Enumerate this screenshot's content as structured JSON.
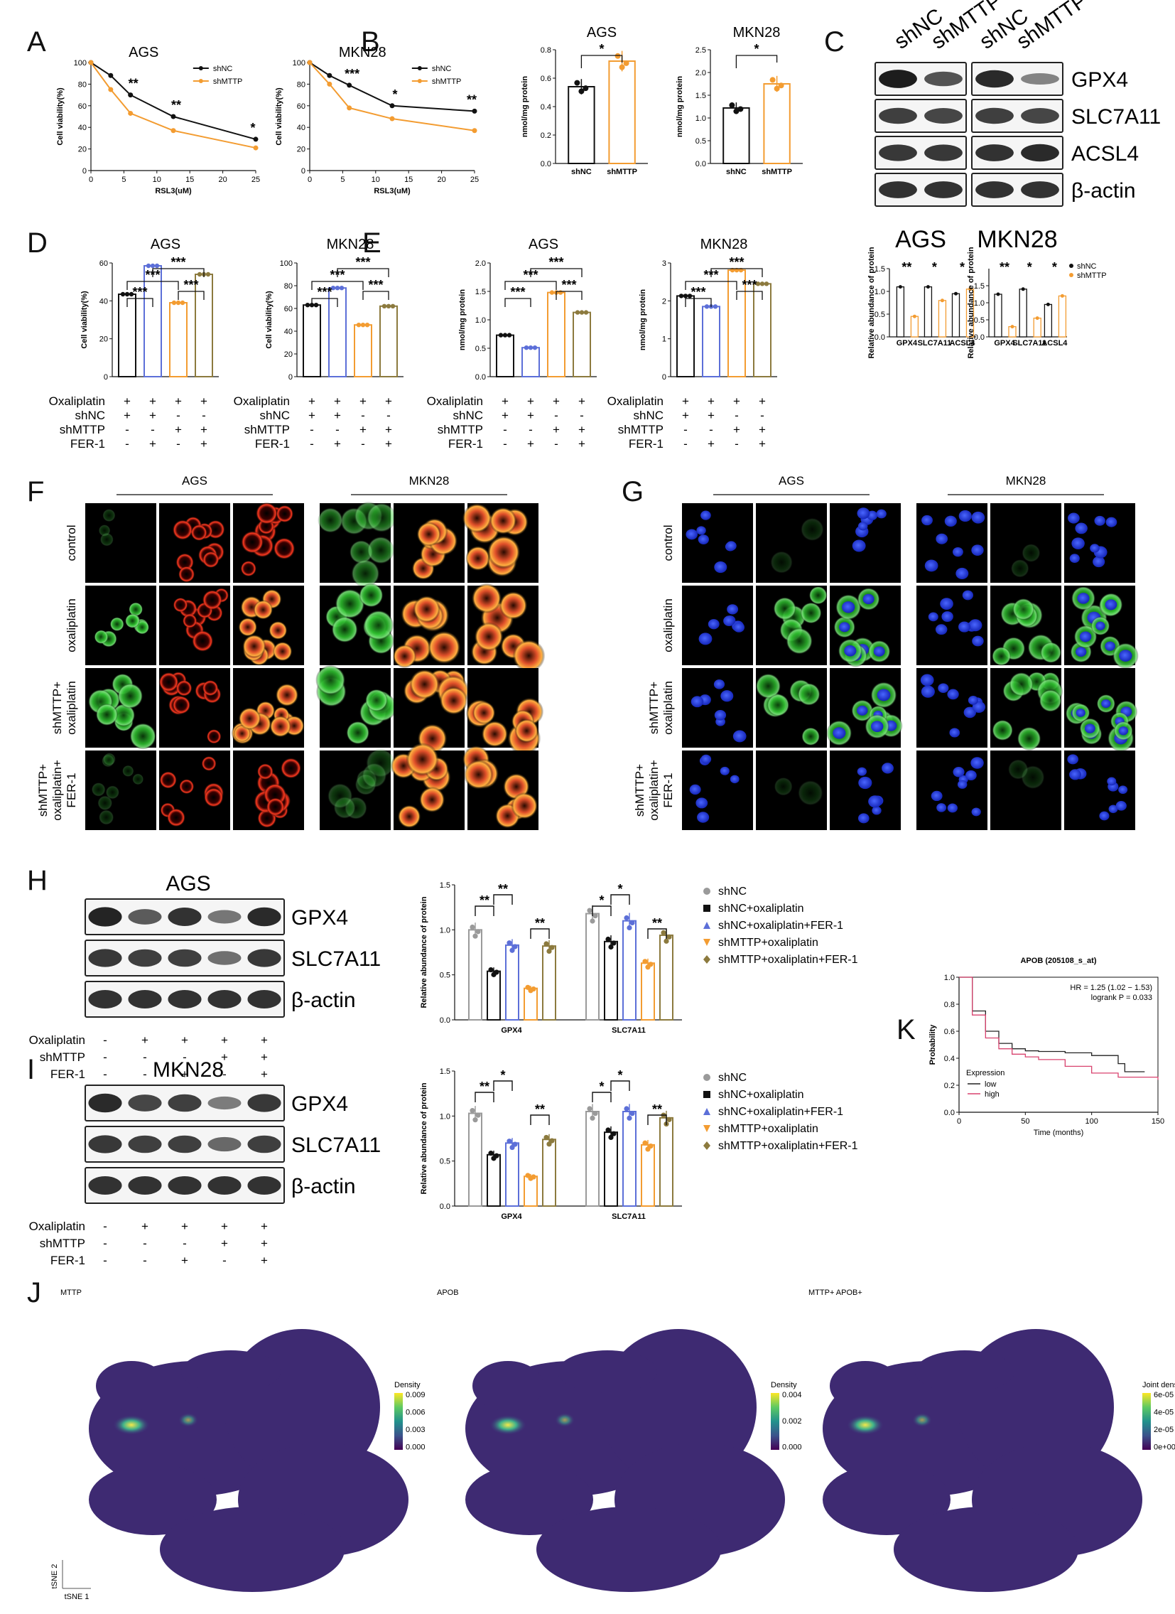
{
  "panels": [
    "A",
    "B",
    "C",
    "D",
    "E",
    "F",
    "G",
    "H",
    "I",
    "K",
    "J"
  ],
  "colors": {
    "shNC": "#111111",
    "shMTTP": "#F39C31",
    "blue": "#5C6FD8",
    "olive": "#8C7A3E",
    "grey": "#9A9A9A",
    "red": "#E03030",
    "green": "#33B833",
    "nucleus": "#2B46F0"
  },
  "panelA": {
    "charts": [
      {
        "title": "AGS",
        "xlabel": "RSL3(uM)",
        "ylabel": "Cell viability(%)",
        "legend": [
          "shNC",
          "shMTTP"
        ],
        "sig": [
          "**",
          "**",
          "*"
        ]
      },
      {
        "title": "MKN28",
        "xlabel": "RSL3(uM)",
        "ylabel": "Cell viability(%)",
        "legend": [
          "shNC",
          "shMTTP"
        ],
        "sig": [
          "***",
          "*",
          "**"
        ]
      }
    ]
  },
  "panelB": {
    "charts": [
      {
        "title": "AGS",
        "ylabel": "nmol/mg protein",
        "categories": [
          "shNC",
          "shMTTP"
        ],
        "sig": "*"
      },
      {
        "title": "MKN28",
        "ylabel": "nmol/mg protein",
        "categories": [
          "shNC",
          "shMTTP"
        ],
        "sig": "*"
      }
    ]
  },
  "panelC": {
    "lanes": [
      "shNC",
      "shMTTP",
      "shNC",
      "shMTTP"
    ],
    "proteins": [
      "GPX4",
      "SLC7A11",
      "ACSL4",
      "β-actin"
    ],
    "cells": [
      "AGS",
      "MKN28"
    ],
    "quant_ylabel": "Relative abundance of protein",
    "quant_categories": [
      "GPX4",
      "SLC7A11",
      "ACSL4"
    ],
    "quant_legend": [
      "shNC",
      "shMTTP"
    ],
    "quant_sig_left": [
      "**",
      "*",
      "*"
    ],
    "quant_sig_right": [
      "**",
      "*",
      "*"
    ]
  },
  "panelD": {
    "charts": [
      {
        "title": "AGS",
        "ylabel": "Cell viability(%)"
      },
      {
        "title": "MKN28",
        "ylabel": "Cell viability(%)"
      }
    ],
    "rows": [
      "Oxaliplatin",
      "shNC",
      "shMTTP",
      "FER-1"
    ],
    "signs": [
      [
        "+",
        "+",
        "+",
        "+"
      ],
      [
        "+",
        "+",
        "-",
        "-"
      ],
      [
        "-",
        "-",
        "+",
        "+"
      ],
      [
        "-",
        "+",
        "-",
        "+"
      ]
    ],
    "sig": [
      "***",
      "***",
      "***",
      "***"
    ]
  },
  "panelE": {
    "charts": [
      {
        "title": "AGS",
        "ylabel": "nmol/mg protein"
      },
      {
        "title": "MKN28",
        "ylabel": "nmol/mg protein"
      }
    ],
    "rows": [
      "Oxaliplatin",
      "shNC",
      "shMTTP",
      "FER-1"
    ],
    "signs": [
      [
        "+",
        "+",
        "+",
        "+"
      ],
      [
        "+",
        "+",
        "-",
        "-"
      ],
      [
        "-",
        "-",
        "+",
        "+"
      ],
      [
        "-",
        "+",
        "-",
        "+"
      ]
    ],
    "sig": [
      "***",
      "***",
      "***",
      "***"
    ]
  },
  "panelF": {
    "cells": [
      "AGS",
      "MKN28"
    ],
    "rows": [
      "control",
      "oxaliplatin",
      "shMTTP+\noxaliplatin",
      "shMTTP+\noxaliplatin+\nFER-1"
    ]
  },
  "panelG": {
    "cells": [
      "AGS",
      "MKN28"
    ],
    "rows": [
      "control",
      "oxaliplatin",
      "shMTTP+\noxaliplatin",
      "shMTTP+\noxaliplatin+\nFER-1"
    ]
  },
  "panelH": {
    "cell": "AGS",
    "proteins": [
      "GPX4",
      "SLC7A11",
      "β-actin"
    ],
    "rows": [
      "Oxaliplatin",
      "shMTTP",
      "FER-1"
    ],
    "signs": [
      [
        "-",
        "+",
        "+",
        "+",
        "+"
      ],
      [
        "-",
        "-",
        "-",
        "+",
        "+"
      ],
      [
        "-",
        "-",
        "+",
        "-",
        "+"
      ]
    ],
    "sig_gpx4": [
      "**",
      "**",
      "**"
    ],
    "sig_slc": [
      "*",
      "*",
      "**"
    ]
  },
  "panelI": {
    "cell": "MKN28",
    "proteins": [
      "GPX4",
      "SLC7A11",
      "β-actin"
    ],
    "rows": [
      "Oxaliplatin",
      "shMTTP",
      "FER-1"
    ],
    "signs": [
      [
        "-",
        "+",
        "+",
        "+",
        "+"
      ],
      [
        "-",
        "-",
        "-",
        "+",
        "+"
      ],
      [
        "-",
        "-",
        "+",
        "-",
        "+"
      ]
    ],
    "sig_gpx4": [
      "**",
      "*",
      "**"
    ],
    "sig_slc": [
      "*",
      "*",
      "**"
    ]
  },
  "legendHI": [
    "shNC",
    "shNC+oxaliplatin",
    "shNC+oxaliplatin+FER-1",
    "shMTTP+oxaliplatin",
    "shMTTP+oxaliplatin+FER-1"
  ],
  "panelK": {
    "title": "APOB (205108_s_at)",
    "hr": "HR = 1.25 (1.02 − 1.53)",
    "logrank": "logrank P = 0.033",
    "xlabel": "Time (months)",
    "ylabel": "Probability",
    "legend_title": "Expression",
    "legend": [
      "low",
      "high"
    ]
  },
  "panelJ": {
    "titles": [
      "MTTP",
      "APOB",
      "MTTP+ APOB+"
    ],
    "scale_labels": [
      "Density",
      "Density",
      "Joint density"
    ],
    "scale_ticks": [
      [
        "0.009",
        "0.006",
        "0.003",
        "0.000"
      ],
      [
        "0.004",
        "0.002",
        "0.000"
      ],
      [
        "6e-05",
        "4e-05",
        "2e-05",
        "0e+00"
      ]
    ],
    "axis": [
      "tSNE 2",
      "tSNE 1"
    ]
  },
  "chart_data": [
    {
      "type": "line",
      "panel": "A",
      "title": "AGS",
      "xlabel": "RSL3(uM)",
      "ylabel": "Cell viability(%)",
      "x": [
        0,
        3,
        6,
        12.5,
        25
      ],
      "ylim": [
        0,
        100
      ],
      "xticks": [
        0,
        5,
        10,
        15,
        20,
        25
      ],
      "yticks": [
        0,
        20,
        40,
        60,
        80,
        100
      ],
      "series": [
        {
          "name": "shNC",
          "values": [
            100,
            88,
            70,
            50,
            29
          ]
        },
        {
          "name": "shMTTP",
          "values": [
            100,
            75,
            53,
            37,
            21
          ]
        }
      ]
    },
    {
      "type": "line",
      "panel": "A",
      "title": "MKN28",
      "xlabel": "RSL3(uM)",
      "ylabel": "Cell viability(%)",
      "x": [
        0,
        3,
        6,
        12.5,
        25
      ],
      "ylim": [
        0,
        100
      ],
      "xticks": [
        0,
        5,
        10,
        15,
        20,
        25
      ],
      "yticks": [
        0,
        20,
        40,
        60,
        80,
        100
      ],
      "series": [
        {
          "name": "shNC",
          "values": [
            100,
            88,
            79,
            60,
            55
          ]
        },
        {
          "name": "shMTTP",
          "values": [
            100,
            80,
            58,
            48,
            37
          ]
        }
      ]
    },
    {
      "type": "bar",
      "panel": "B",
      "title": "AGS",
      "categories": [
        "shNC",
        "shMTTP"
      ],
      "values": [
        0.54,
        0.72
      ],
      "ylim": [
        0,
        0.8
      ],
      "yticks": [
        0.0,
        0.2,
        0.4,
        0.6,
        0.8
      ],
      "ylabel": "nmol/mg protein"
    },
    {
      "type": "bar",
      "panel": "B",
      "title": "MKN28",
      "categories": [
        "shNC",
        "shMTTP"
      ],
      "values": [
        1.22,
        1.75
      ],
      "ylim": [
        0,
        2.5
      ],
      "yticks": [
        0.0,
        0.5,
        1.0,
        1.5,
        2.0,
        2.5
      ],
      "ylabel": "nmol/mg protein"
    },
    {
      "type": "bar",
      "panel": "D",
      "title": "AGS",
      "values": [
        43.5,
        58.5,
        39,
        54
      ],
      "ylim": [
        0,
        60
      ],
      "yticks": [
        0,
        20,
        40,
        60
      ],
      "ylabel": "Cell viability(%)"
    },
    {
      "type": "bar",
      "panel": "D",
      "title": "MKN28",
      "values": [
        63,
        78,
        45.5,
        62
      ],
      "ylim": [
        0,
        100
      ],
      "yticks": [
        0,
        20,
        40,
        60,
        80,
        100
      ],
      "ylabel": "Cell viability(%)"
    },
    {
      "type": "bar",
      "panel": "E",
      "title": "AGS",
      "values": [
        0.73,
        0.51,
        1.48,
        1.13
      ],
      "ylim": [
        0,
        2.0
      ],
      "yticks": [
        0.0,
        0.5,
        1.0,
        1.5,
        2.0
      ],
      "ylabel": "nmol/mg protein"
    },
    {
      "type": "bar",
      "panel": "E",
      "title": "MKN28",
      "values": [
        2.13,
        1.85,
        2.81,
        2.45
      ],
      "ylim": [
        0,
        3
      ],
      "yticks": [
        0,
        1,
        2,
        3
      ],
      "ylabel": "nmol/mg protein"
    },
    {
      "type": "bar",
      "panel": "C",
      "title": "AGS",
      "categories": [
        "GPX4",
        "SLC7A11",
        "ACSL4"
      ],
      "series": [
        {
          "name": "shNC",
          "values": [
            1.1,
            1.1,
            0.95
          ]
        },
        {
          "name": "shMTTP",
          "values": [
            0.45,
            0.8,
            1.05
          ]
        }
      ],
      "ylim": [
        0,
        1.5
      ]
    },
    {
      "type": "bar",
      "panel": "C",
      "title": "MKN28",
      "categories": [
        "GPX4",
        "SLC7A11",
        "ACSL4"
      ],
      "series": [
        {
          "name": "shNC",
          "values": [
            1.25,
            1.4,
            0.95
          ]
        },
        {
          "name": "shMTTP",
          "values": [
            0.3,
            0.55,
            1.2
          ]
        }
      ],
      "ylim": [
        0,
        2.0
      ]
    },
    {
      "type": "bar",
      "panel": "H",
      "categories": [
        "GPX4",
        "SLC7A11"
      ],
      "ylabel": "Relative abundance of protein",
      "ylim": [
        0,
        1.5
      ],
      "yticks": [
        0.0,
        0.5,
        1.0,
        1.5
      ],
      "series": [
        {
          "name": "shNC",
          "values": [
            1.0,
            1.18
          ]
        },
        {
          "name": "shNC+oxaliplatin",
          "values": [
            0.54,
            0.87
          ]
        },
        {
          "name": "shNC+oxaliplatin+FER-1",
          "values": [
            0.83,
            1.1
          ]
        },
        {
          "name": "shMTTP+oxaliplatin",
          "values": [
            0.35,
            0.63
          ]
        },
        {
          "name": "shMTTP+oxaliplatin+FER-1",
          "values": [
            0.82,
            0.94
          ]
        }
      ]
    },
    {
      "type": "bar",
      "panel": "I",
      "categories": [
        "GPX4",
        "SLC7A11"
      ],
      "ylabel": "Relative abundance of protein",
      "ylim": [
        0,
        1.5
      ],
      "yticks": [
        0.0,
        0.5,
        1.0,
        1.5
      ],
      "series": [
        {
          "name": "shNC",
          "values": [
            1.03,
            1.05
          ]
        },
        {
          "name": "shNC+oxaliplatin",
          "values": [
            0.57,
            0.82
          ]
        },
        {
          "name": "shNC+oxaliplatin+FER-1",
          "values": [
            0.7,
            1.05
          ]
        },
        {
          "name": "shMTTP+oxaliplatin",
          "values": [
            0.33,
            0.68
          ]
        },
        {
          "name": "shMTTP+oxaliplatin+FER-1",
          "values": [
            0.74,
            0.98
          ]
        }
      ]
    },
    {
      "type": "line",
      "panel": "K",
      "title": "APOB (205108_s_at)",
      "xlabel": "Time (months)",
      "ylabel": "Probability",
      "xlim": [
        0,
        150
      ],
      "ylim": [
        0,
        1.0
      ],
      "xticks": [
        0,
        50,
        100,
        150
      ],
      "yticks": [
        0.0,
        0.2,
        0.4,
        0.6,
        0.8,
        1.0
      ],
      "series": [
        {
          "name": "low",
          "x": [
            0,
            10,
            20,
            30,
            40,
            50,
            60,
            80,
            100,
            120,
            125,
            140
          ],
          "values": [
            1.0,
            0.75,
            0.6,
            0.51,
            0.47,
            0.455,
            0.45,
            0.44,
            0.42,
            0.36,
            0.3,
            0.3
          ]
        },
        {
          "name": "high",
          "x": [
            0,
            10,
            20,
            30,
            40,
            50,
            60,
            80,
            100,
            120,
            150
          ],
          "values": [
            1.0,
            0.72,
            0.55,
            0.47,
            0.43,
            0.41,
            0.39,
            0.34,
            0.29,
            0.26,
            0.24
          ]
        }
      ]
    }
  ]
}
